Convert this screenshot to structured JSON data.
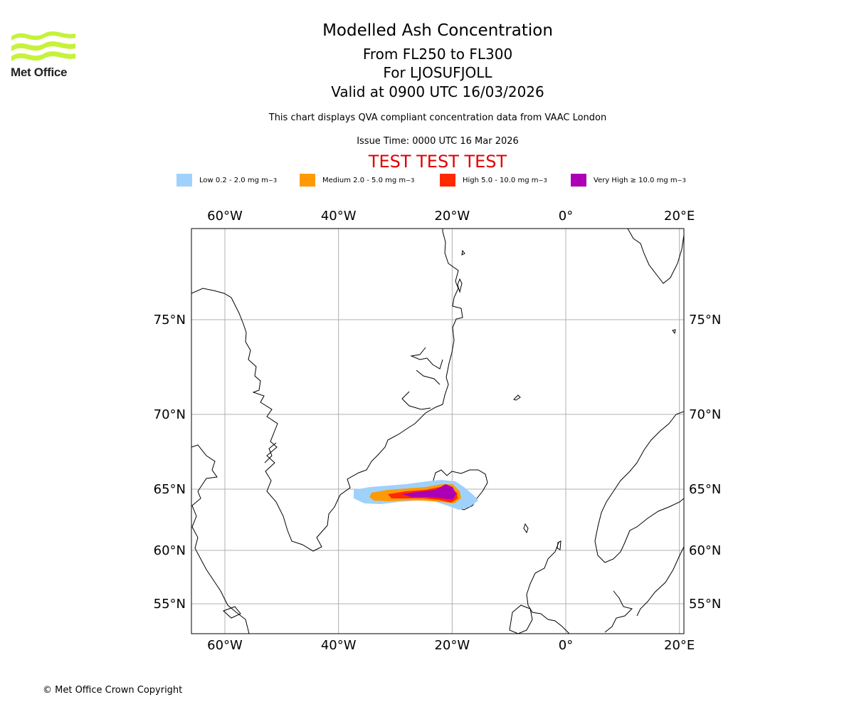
{
  "logo": {
    "name": "Met Office"
  },
  "header": {
    "title": "Modelled Ash Concentration",
    "levels": "From FL250 to FL300",
    "volcano": "For LJOSUFJOLL",
    "valid": "Valid at 0900 UTC 16/03/2026",
    "subtitle": "This chart displays QVA compliant concentration data from VAAC London",
    "issue": "Issue Time: 0000 UTC 16 Mar 2026",
    "test_banner": "TEST TEST TEST"
  },
  "legend": [
    {
      "label": "Low 0.2 - 2.0 mg m",
      "sup": "−3",
      "color": "#9fd2fb"
    },
    {
      "label": "Medium 2.0 - 5.0 mg m",
      "sup": "−3",
      "color": "#ff9a06"
    },
    {
      "label": "High 5.0 - 10.0 mg m",
      "sup": "−3",
      "color": "#ff2a00"
    },
    {
      "label": "Very High ≥ 10.0 mg m",
      "sup": "−3",
      "color": "#ab00b5"
    }
  ],
  "map": {
    "lon_labels": [
      "60°W",
      "40°W",
      "20°W",
      "0°",
      "20°E"
    ],
    "lat_labels": [
      "75°N",
      "70°N",
      "65°N",
      "60°N",
      "55°N"
    ],
    "lon_values": [
      -60,
      -40,
      -20,
      0,
      20
    ],
    "lat_values": [
      75,
      70,
      65,
      60,
      55
    ],
    "grid_color": "#b0b0b0"
  },
  "footer": {
    "copyright": "© Met Office Crown Copyright"
  }
}
